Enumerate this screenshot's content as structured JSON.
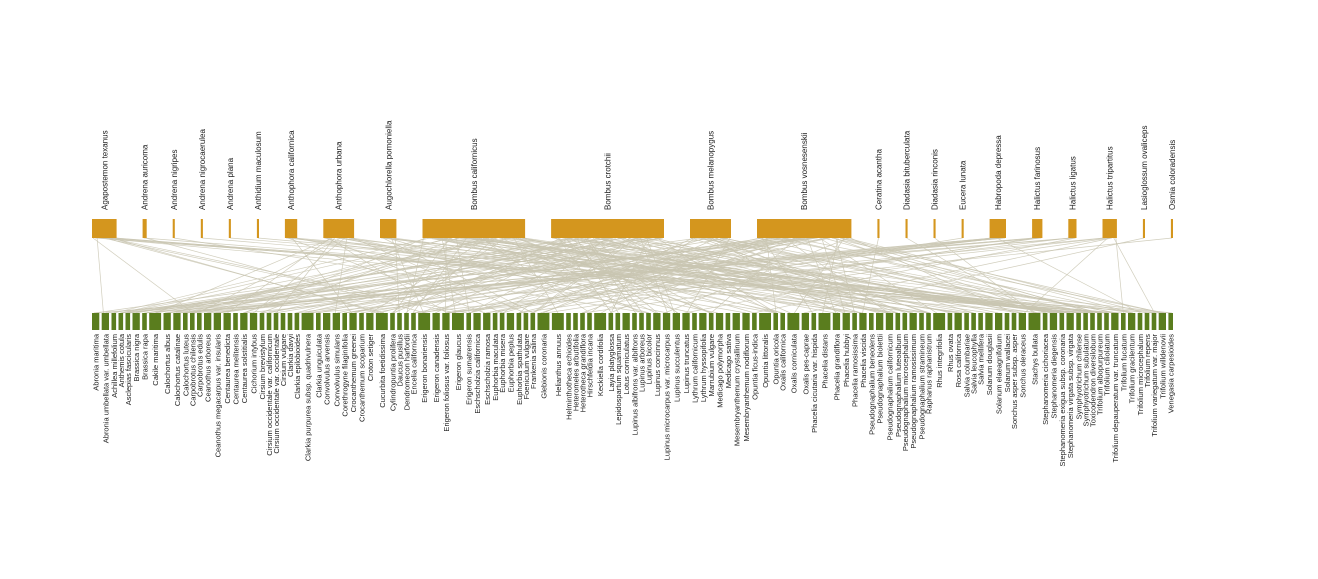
{
  "chart_data": {
    "type": "bipartite-network",
    "title": "",
    "colors": {
      "pollinator": "#D4961E",
      "plant": "#5A7D1E",
      "link": "#C9C6B2"
    },
    "pollinators": [
      {
        "name": "Agapostemon texanus",
        "degree": 12
      },
      {
        "name": "Andrena auricoma",
        "degree": 2
      },
      {
        "name": "Andrena nigripes",
        "degree": 1
      },
      {
        "name": "Andrena nigrocaerulea",
        "degree": 1
      },
      {
        "name": "Andrena plana",
        "degree": 1
      },
      {
        "name": "Anthidium maculosum",
        "degree": 1
      },
      {
        "name": "Anthophora californica",
        "degree": 6
      },
      {
        "name": "Anthophora urbana",
        "degree": 15
      },
      {
        "name": "Augochlorella pomoniella",
        "degree": 8
      },
      {
        "name": "Bombus californicus",
        "degree": 50
      },
      {
        "name": "Bombus crotchii",
        "degree": 55
      },
      {
        "name": "Bombus melanopygus",
        "degree": 20
      },
      {
        "name": "Bombus vosnesenskii",
        "degree": 46
      },
      {
        "name": "Ceratina acantha",
        "degree": 1
      },
      {
        "name": "Diadasia bituberculata",
        "degree": 1
      },
      {
        "name": "Diadasia rinconis",
        "degree": 1
      },
      {
        "name": "Eucera lunata",
        "degree": 1
      },
      {
        "name": "Habropoda depressa",
        "degree": 8
      },
      {
        "name": "Halictus farinosus",
        "degree": 5
      },
      {
        "name": "Halictus ligatus",
        "degree": 4
      },
      {
        "name": "Halictus tripartitus",
        "degree": 7
      },
      {
        "name": "Lasioglossum ovaliceps",
        "degree": 1
      },
      {
        "name": "Osmia coloradensis",
        "degree": 1
      }
    ],
    "plants": [
      "Abronia maritima",
      "Abronia umbellata var. umbellata",
      "Achillea millefolium",
      "Anthemis cotula",
      "Asclepias fascicularis",
      "Brassica nigra",
      "Brassica rapa",
      "Cakile maritima",
      "Calochortus albus",
      "Calochortus catalinae",
      "Calochortus luteus",
      "Carpobrotus chilensis",
      "Carpobrotus edulis",
      "Ceanothus arboreus",
      "Ceanothus megacarpus var. insularis",
      "Centaurea benedicta",
      "Centaurea melitensis",
      "Centaurea solstitialis",
      "Cichorium intybus",
      "Cirsium brevistylum",
      "Cirsium occidentale var. californicum",
      "Cirsium occidentale var. occidentale",
      "Cirsium vulgare",
      "Clarkia davyi",
      "Clarkia epilobioides",
      "Clarkia purpurea subsp. quadrivulnera",
      "Clarkia unguiculata",
      "Convolvulus arvensis",
      "Convolvulus simulans",
      "Corethrogyne filaginifolia",
      "Crocanthemum greenei",
      "Crocanthemum scoparium",
      "Croton setiger",
      "Cucurbita foetidissima",
      "Cylindropuntia prolifera",
      "Daucus pusillus",
      "Dendromecon harfordii",
      "Encelia californica",
      "Erigeron bonariensis",
      "Erigeron canadensis",
      "Erigeron foliosus var. foliosus",
      "Erigeron glaucus",
      "Erigeron sumatrensis",
      "Eschscholzia californica",
      "Eschscholzia ramosa",
      "Euphorbia maculata",
      "Euphorbia misera",
      "Euphorbia peplus",
      "Euphorbia spathulata",
      "Foeniculum vulgare",
      "Frankenia salina",
      "Glebionis coronaria",
      "Helianthus annuus",
      "Helminthotheca echioides",
      "Heteromeles arbutifolia",
      "Heterotheca grandiflora",
      "Hirschfeldia incana",
      "Keckiella cordifolia",
      "Layia platyglossa",
      "Lepidospartum squamatum",
      "Lotus corniculatus",
      "Lupinus albifrons var. albifrons",
      "Lupinus arboreus",
      "Lupinus bicolor",
      "Lupinus concinnus",
      "Lupinus microcarpus var. microcarpus",
      "Lupinus succulentus",
      "Lupinus truncatus",
      "Lythrum californicum",
      "Lythrum hyssopifolia",
      "Marrubium vulgare",
      "Medicago polymorpha",
      "Medicago sativa",
      "Mesembryanthemum crystallinum",
      "Mesembryanthemum nodiflorum",
      "Opuntia ficus-indica",
      "Opuntia littoralis",
      "Opuntia oricola",
      "Oxalis californica",
      "Oxalis corniculata",
      "Oxalis pes-caprae",
      "Phacelia cicutaria var. hispida",
      "Phacelia distans",
      "Phacelia grandiflora",
      "Phacelia hubbyi",
      "Phacelia ramosissima",
      "Phacelia viscida",
      "Pseudognaphalium beneolens",
      "Pseudognaphalium biolettii",
      "Pseudognaphalium californicum",
      "Pseudognaphalium luteoalbum",
      "Pseudognaphalium microcephalum",
      "Pseudognaphalium ramosissimum",
      "Pseudognaphalium stramineum",
      "Raphanus raphanistrum",
      "Rhus integrifolia",
      "Rhus ovata",
      "Rosa californica",
      "Salvia columbariae",
      "Salvia leucophylla",
      "Salvia mellifera",
      "Solanum douglasii",
      "Solanum elaeagnifolium",
      "Solanum wallacei",
      "Sonchus asper subsp. asper",
      "Sonchus oleraceus",
      "Stachys bullata",
      "Stephanomeria cichoriacea",
      "Stephanomeria diegensis",
      "Stephanomeria exigua subsp. coronaria",
      "Stephanomeria virgata subsp. virgata",
      "Symphyotrichum chilense",
      "Symphyotrichum subulatum",
      "Toxicodendron diversilobum",
      "Trifolium albopurpureum",
      "Trifolium ciliolatum",
      "Trifolium depauperatum var. truncatum",
      "Trifolium fucatum",
      "Trifolium gracilentum",
      "Trifolium microcephalum",
      "Trifolium repens",
      "Trifolium variegatum var. major",
      "Trifolium willdenovii",
      "Venegasia carpesioides"
    ]
  }
}
